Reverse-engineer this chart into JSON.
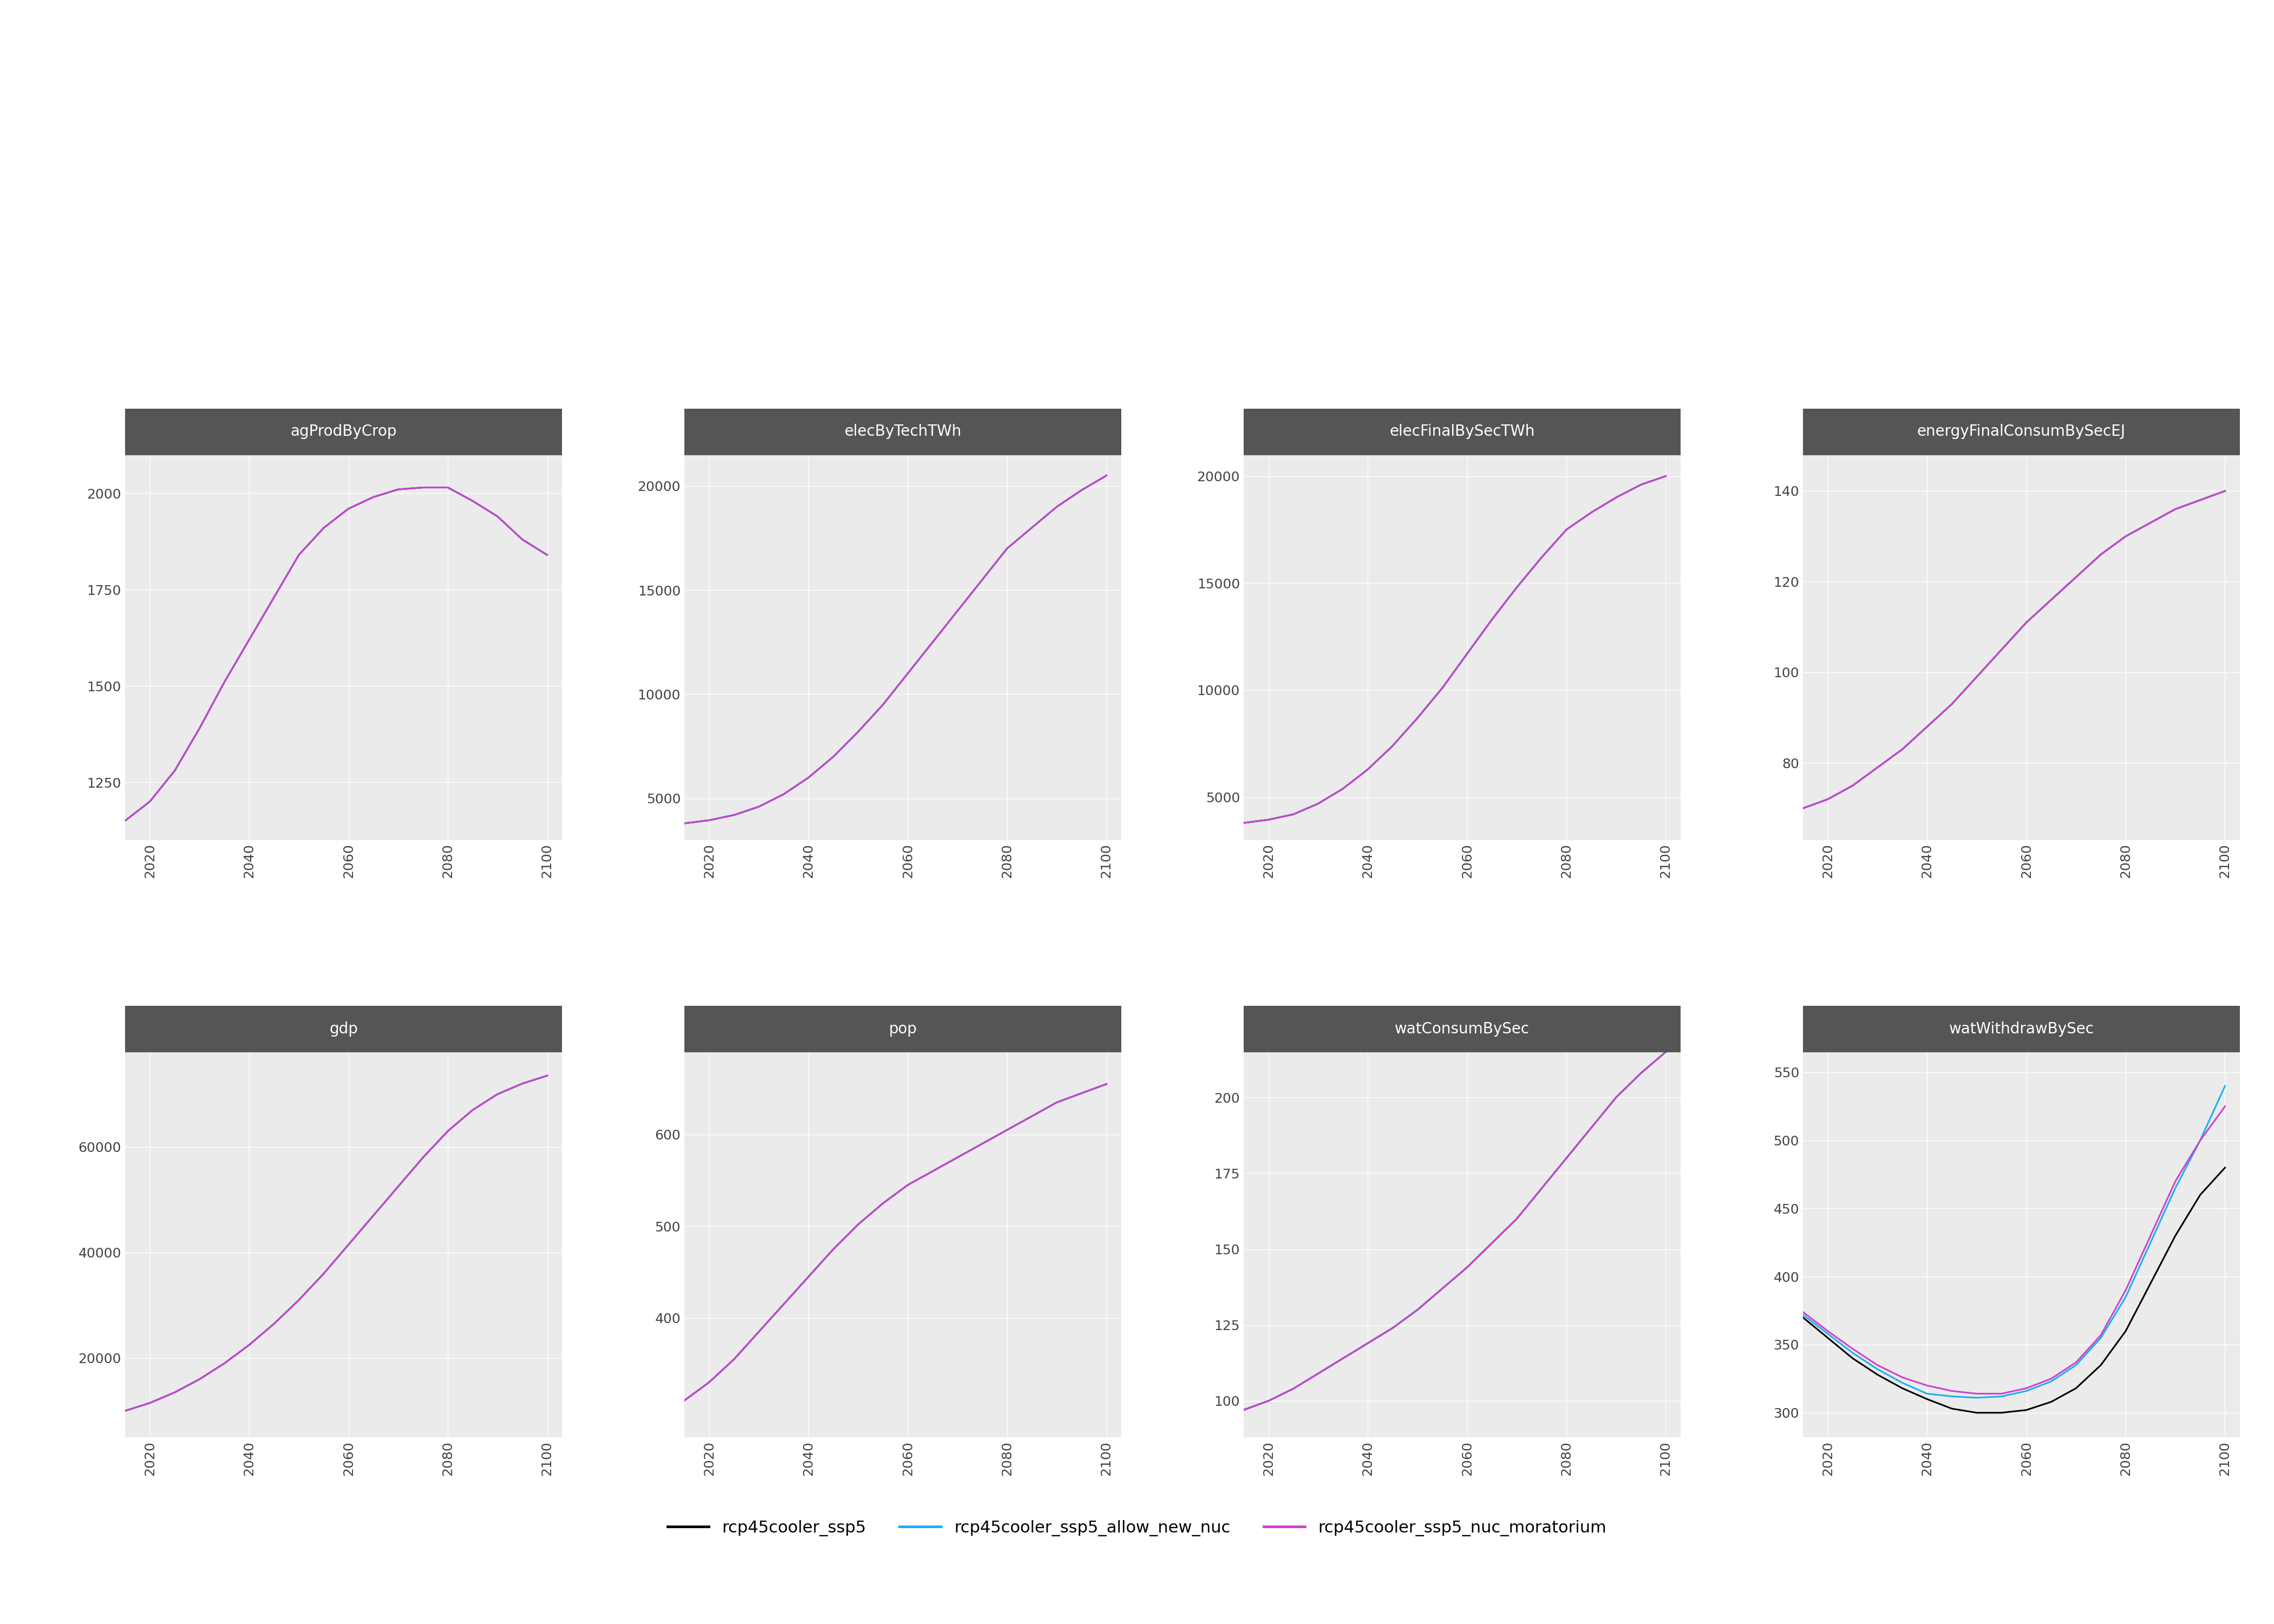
{
  "years": [
    2015,
    2020,
    2025,
    2030,
    2035,
    2040,
    2045,
    2050,
    2055,
    2060,
    2065,
    2070,
    2075,
    2080,
    2085,
    2090,
    2095,
    2100
  ],
  "subplots": [
    {
      "title": "agProdByCrop",
      "row": 0,
      "col": 0,
      "yticks": [
        1250,
        1500,
        1750,
        2000
      ],
      "ylim": [
        1100,
        2100
      ],
      "scenarios": {
        "rcp45cooler_ssp5": [
          1150,
          1200,
          1280,
          1390,
          1510,
          1620,
          1730,
          1840,
          1910,
          1960,
          1990,
          2010,
          2015,
          2015,
          1980,
          1940,
          1880,
          1840
        ],
        "rcp45cooler_ssp5_allow_new_nuc": [
          1150,
          1200,
          1280,
          1390,
          1510,
          1620,
          1730,
          1840,
          1910,
          1960,
          1990,
          2010,
          2015,
          2015,
          1980,
          1940,
          1880,
          1840
        ],
        "rcp45cooler_ssp5_nuc_moratorium": [
          1150,
          1200,
          1280,
          1390,
          1510,
          1620,
          1730,
          1840,
          1910,
          1960,
          1990,
          2010,
          2015,
          2015,
          1980,
          1940,
          1880,
          1840
        ]
      }
    },
    {
      "title": "elecByTechTWh",
      "row": 0,
      "col": 1,
      "yticks": [
        5000,
        10000,
        15000,
        20000
      ],
      "ylim": [
        3000,
        21500
      ],
      "scenarios": {
        "rcp45cooler_ssp5": [
          3800,
          3950,
          4200,
          4600,
          5200,
          6000,
          7000,
          8200,
          9500,
          11000,
          12500,
          14000,
          15500,
          17000,
          18000,
          19000,
          19800,
          20500
        ],
        "rcp45cooler_ssp5_allow_new_nuc": [
          3800,
          3950,
          4200,
          4600,
          5200,
          6000,
          7000,
          8200,
          9500,
          11000,
          12500,
          14000,
          15500,
          17000,
          18000,
          19000,
          19800,
          20500
        ],
        "rcp45cooler_ssp5_nuc_moratorium": [
          3800,
          3950,
          4200,
          4600,
          5200,
          6000,
          7000,
          8200,
          9500,
          11000,
          12500,
          14000,
          15500,
          17000,
          18000,
          19000,
          19800,
          20500
        ]
      }
    },
    {
      "title": "elecFinalBySecTWh",
      "row": 0,
      "col": 2,
      "yticks": [
        5000,
        10000,
        15000,
        20000
      ],
      "ylim": [
        3000,
        21000
      ],
      "scenarios": {
        "rcp45cooler_ssp5": [
          3800,
          3950,
          4200,
          4700,
          5400,
          6300,
          7400,
          8700,
          10100,
          11700,
          13300,
          14800,
          16200,
          17500,
          18300,
          19000,
          19600,
          20000
        ],
        "rcp45cooler_ssp5_allow_new_nuc": [
          3800,
          3950,
          4200,
          4700,
          5400,
          6300,
          7400,
          8700,
          10100,
          11700,
          13300,
          14800,
          16200,
          17500,
          18300,
          19000,
          19600,
          20000
        ],
        "rcp45cooler_ssp5_nuc_moratorium": [
          3800,
          3950,
          4200,
          4700,
          5400,
          6300,
          7400,
          8700,
          10100,
          11700,
          13300,
          14800,
          16200,
          17500,
          18300,
          19000,
          19600,
          20000
        ]
      }
    },
    {
      "title": "energyFinalConsumBySecEJ",
      "row": 0,
      "col": 3,
      "yticks": [
        80,
        100,
        120,
        140
      ],
      "ylim": [
        63,
        148
      ],
      "scenarios": {
        "rcp45cooler_ssp5": [
          70,
          72,
          75,
          79,
          83,
          88,
          93,
          99,
          105,
          111,
          116,
          121,
          126,
          130,
          133,
          136,
          138,
          140
        ],
        "rcp45cooler_ssp5_allow_new_nuc": [
          70,
          72,
          75,
          79,
          83,
          88,
          93,
          99,
          105,
          111,
          116,
          121,
          126,
          130,
          133,
          136,
          138,
          140
        ],
        "rcp45cooler_ssp5_nuc_moratorium": [
          70,
          72,
          75,
          79,
          83,
          88,
          93,
          99,
          105,
          111,
          116,
          121,
          126,
          130,
          133,
          136,
          138,
          140
        ]
      }
    },
    {
      "title": "gdp",
      "row": 1,
      "col": 0,
      "yticks": [
        20000,
        40000,
        60000
      ],
      "ylim": [
        5000,
        78000
      ],
      "scenarios": {
        "rcp45cooler_ssp5": [
          10000,
          11500,
          13500,
          16000,
          19000,
          22500,
          26500,
          31000,
          36000,
          41500,
          47000,
          52500,
          58000,
          63000,
          67000,
          70000,
          72000,
          73500
        ],
        "rcp45cooler_ssp5_allow_new_nuc": [
          10000,
          11500,
          13500,
          16000,
          19000,
          22500,
          26500,
          31000,
          36000,
          41500,
          47000,
          52500,
          58000,
          63000,
          67000,
          70000,
          72000,
          73500
        ],
        "rcp45cooler_ssp5_nuc_moratorium": [
          10000,
          11500,
          13500,
          16000,
          19000,
          22500,
          26500,
          31000,
          36000,
          41500,
          47000,
          52500,
          58000,
          63000,
          67000,
          70000,
          72000,
          73500
        ]
      }
    },
    {
      "title": "pop",
      "row": 1,
      "col": 1,
      "yticks": [
        400,
        500,
        600
      ],
      "ylim": [
        270,
        690
      ],
      "scenarios": {
        "rcp45cooler_ssp5": [
          310,
          330,
          355,
          385,
          415,
          445,
          475,
          502,
          525,
          545,
          560,
          575,
          590,
          605,
          620,
          635,
          645,
          655
        ],
        "rcp45cooler_ssp5_allow_new_nuc": [
          310,
          330,
          355,
          385,
          415,
          445,
          475,
          502,
          525,
          545,
          560,
          575,
          590,
          605,
          620,
          635,
          645,
          655
        ],
        "rcp45cooler_ssp5_nuc_moratorium": [
          310,
          330,
          355,
          385,
          415,
          445,
          475,
          502,
          525,
          545,
          560,
          575,
          590,
          605,
          620,
          635,
          645,
          655
        ]
      }
    },
    {
      "title": "watConsumBySec",
      "row": 1,
      "col": 2,
      "yticks": [
        100,
        125,
        150,
        175,
        200
      ],
      "ylim": [
        88,
        215
      ],
      "scenarios": {
        "rcp45cooler_ssp5": [
          97,
          100,
          104,
          109,
          114,
          119,
          124,
          130,
          137,
          144,
          152,
          160,
          170,
          180,
          190,
          200,
          208,
          215
        ],
        "rcp45cooler_ssp5_allow_new_nuc": [
          97,
          100,
          104,
          109,
          114,
          119,
          124,
          130,
          137,
          144,
          152,
          160,
          170,
          180,
          190,
          200,
          208,
          215
        ],
        "rcp45cooler_ssp5_nuc_moratorium": [
          97,
          100,
          104,
          109,
          114,
          119,
          124,
          130,
          137,
          144,
          152,
          160,
          170,
          180,
          190,
          200,
          208,
          215
        ]
      }
    },
    {
      "title": "watWithdrawBySec",
      "row": 1,
      "col": 3,
      "yticks": [
        300,
        350,
        400,
        450,
        500,
        550
      ],
      "ylim": [
        282,
        565
      ],
      "scenarios": {
        "rcp45cooler_ssp5": [
          370,
          355,
          340,
          328,
          318,
          310,
          303,
          300,
          300,
          302,
          308,
          318,
          335,
          360,
          395,
          430,
          460,
          480
        ],
        "rcp45cooler_ssp5_allow_new_nuc": [
          372,
          358,
          344,
          332,
          322,
          314,
          312,
          311,
          312,
          316,
          323,
          335,
          355,
          385,
          425,
          465,
          500,
          540
        ],
        "rcp45cooler_ssp5_nuc_moratorium": [
          374,
          360,
          347,
          335,
          326,
          320,
          316,
          314,
          314,
          318,
          325,
          337,
          357,
          390,
          430,
          470,
          500,
          525
        ]
      }
    }
  ],
  "scenario_colors": {
    "rcp45cooler_ssp5": "#000000",
    "rcp45cooler_ssp5_allow_new_nuc": "#1EAEF0",
    "rcp45cooler_ssp5_nuc_moratorium": "#CC44CC"
  },
  "scenario_labels": {
    "rcp45cooler_ssp5": "rcp45cooler_ssp5",
    "rcp45cooler_ssp5_allow_new_nuc": "rcp45cooler_ssp5_allow_new_nuc",
    "rcp45cooler_ssp5_nuc_moratorium": "rcp45cooler_ssp5_nuc_moratorium"
  },
  "xticks": [
    2020,
    2040,
    2060,
    2080,
    2100
  ],
  "nrows": 2,
  "ncols": 4,
  "background_color": "#FFFFFF",
  "panel_bg_color": "#EBEBEB",
  "title_bg_color": "#555555",
  "title_text_color": "#FFFFFF",
  "grid_color": "#FFFFFF",
  "tick_label_color": "#444444",
  "linewidth": 2.2,
  "title_fontsize": 20,
  "tick_fontsize": 18
}
